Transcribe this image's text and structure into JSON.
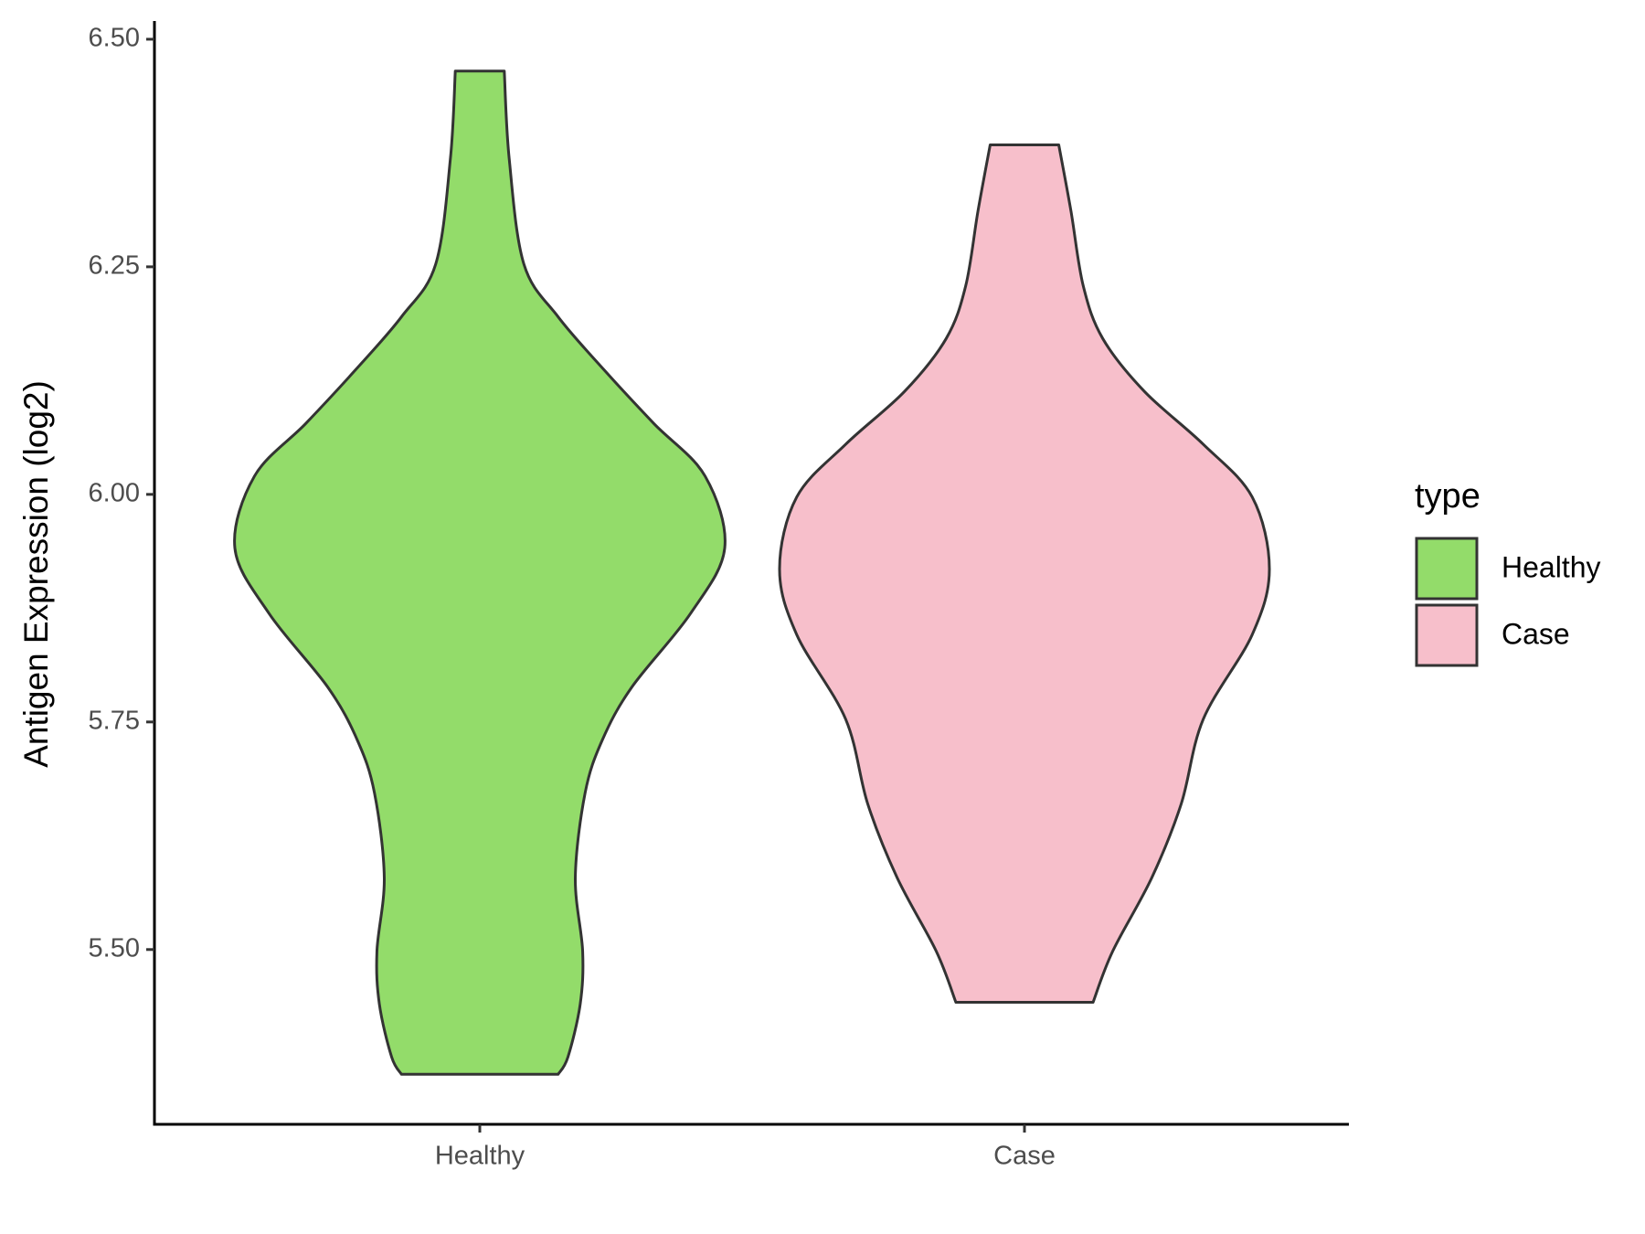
{
  "chart_data": {
    "type": "violin",
    "y_label": "Antigen Expression (log2)",
    "categories": [
      "Healthy",
      "Case"
    ],
    "legend_title": "type",
    "series": [
      {
        "name": "Healthy",
        "color": "#93dc6a",
        "y": [
          6.465,
          6.369,
          6.253,
          6.195,
          6.136,
          6.078,
          6.02,
          5.941,
          5.869,
          5.788,
          5.73,
          5.672,
          5.579,
          5.498,
          5.44,
          5.382,
          5.363
        ],
        "density": [
          0.1,
          0.12,
          0.18,
          0.32,
          0.51,
          0.71,
          0.92,
          1.0,
          0.86,
          0.62,
          0.5,
          0.43,
          0.39,
          0.42,
          0.41,
          0.36,
          0.32
        ]
      },
      {
        "name": "Case",
        "color": "#f7bfcb",
        "y": [
          6.384,
          6.311,
          6.229,
          6.171,
          6.113,
          6.055,
          5.997,
          5.918,
          5.846,
          5.753,
          5.66,
          5.579,
          5.498,
          5.442
        ],
        "density": [
          0.14,
          0.19,
          0.24,
          0.32,
          0.49,
          0.73,
          0.93,
          1.0,
          0.93,
          0.73,
          0.64,
          0.52,
          0.36,
          0.28
        ]
      }
    ],
    "ylim": [
      5.308,
      6.52
    ],
    "yticks": [
      {
        "value": 5.5,
        "label": "5.50"
      },
      {
        "value": 5.75,
        "label": "5.75"
      },
      {
        "value": 6.0,
        "label": "6.00"
      },
      {
        "value": 6.25,
        "label": "6.25"
      },
      {
        "value": 6.5,
        "label": "6.50"
      }
    ],
    "legend_position": "right"
  }
}
